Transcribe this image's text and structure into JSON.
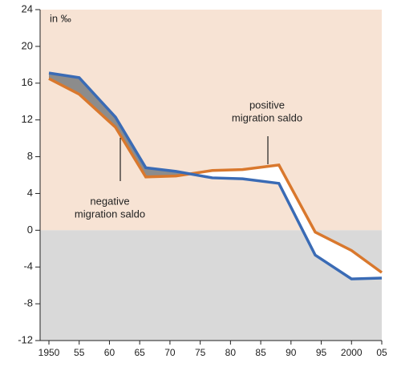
{
  "chart_data": {
    "type": "line",
    "y_label": "in ‰",
    "x": [
      1950,
      1955,
      1961,
      1966,
      1971,
      1977,
      1982,
      1988,
      1994,
      2000,
      2005
    ],
    "series": [
      {
        "color": "#3a6bb5",
        "values": [
          17.1,
          16.6,
          12.3,
          6.8,
          6.4,
          5.7,
          5.6,
          5.1,
          -2.7,
          -5.3,
          -5.2
        ]
      },
      {
        "color": "#d9782d",
        "values": [
          16.5,
          14.8,
          11.2,
          5.8,
          5.9,
          6.5,
          6.6,
          7.1,
          -0.2,
          -2.2,
          -4.6
        ]
      }
    ],
    "xlim": [
      1950,
      2005
    ],
    "xticks": [
      1950,
      {
        "value": 1955,
        "label": "55"
      },
      {
        "value": 1960,
        "label": "60"
      },
      {
        "value": 1965,
        "label": "65"
      },
      {
        "value": 1970,
        "label": "70"
      },
      {
        "value": 1975,
        "label": "75"
      },
      {
        "value": 1980,
        "label": "80"
      },
      {
        "value": 1985,
        "label": "85"
      },
      {
        "value": 1990,
        "label": "90"
      },
      {
        "value": 1995,
        "label": "95"
      },
      2000,
      {
        "value": 2005,
        "label": "05"
      }
    ],
    "ylim": [
      -12,
      24
    ],
    "yticks": [
      -12,
      -8,
      -4,
      0,
      4,
      8,
      12,
      16,
      20,
      24
    ],
    "annotations": [
      {
        "lines": [
          "positive",
          "migration saldo"
        ]
      },
      {
        "lines": [
          "negative",
          "migration saldo"
        ]
      }
    ]
  }
}
